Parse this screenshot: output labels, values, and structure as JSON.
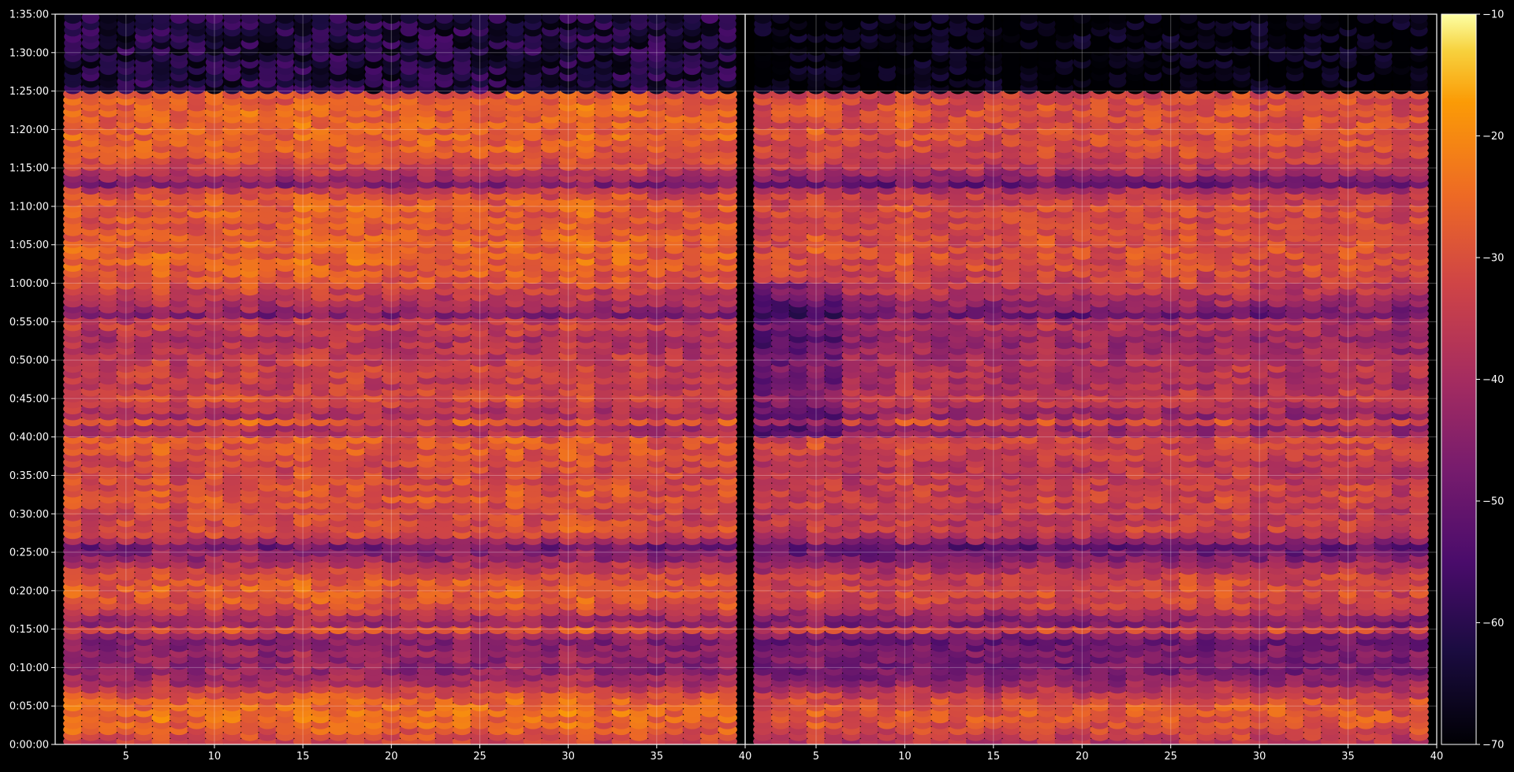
{
  "chart_data": [
    {
      "type": "heatmap",
      "panel": "left",
      "xlim": [
        1,
        40
      ],
      "x_ticks": [
        "5",
        "10",
        "15",
        "20",
        "25",
        "30",
        "35",
        "40"
      ],
      "x_tick_values": [
        5,
        10,
        15,
        20,
        25,
        30,
        35,
        40
      ],
      "ylim": [
        0,
        5700
      ],
      "y_ticks": [
        "0:00:00",
        "0:05:00",
        "0:10:00",
        "0:15:00",
        "0:20:00",
        "0:25:00",
        "0:30:00",
        "0:35:00",
        "0:40:00",
        "0:45:00",
        "0:50:00",
        "0:55:00",
        "1:00:00",
        "1:05:00",
        "1:10:00",
        "1:15:00",
        "1:20:00",
        "1:25:00",
        "1:30:00",
        "1:35:00"
      ],
      "y_tick_values": [
        0,
        300,
        600,
        900,
        1200,
        1500,
        1800,
        2100,
        2400,
        2700,
        3000,
        3300,
        3600,
        3900,
        4200,
        4500,
        4800,
        5100,
        5400,
        5700
      ],
      "data_x_range": [
        1.5,
        39.5
      ],
      "data_y_range_seconds": [
        0,
        5100
      ],
      "grid": true,
      "colormap": "inferno"
    },
    {
      "type": "heatmap",
      "panel": "right",
      "xlim": [
        1,
        40
      ],
      "x_ticks": [
        "5",
        "10",
        "15",
        "20",
        "25",
        "30",
        "35",
        "40"
      ],
      "x_tick_values": [
        5,
        10,
        15,
        20,
        25,
        30,
        35,
        40
      ],
      "ylim": [
        0,
        5700
      ],
      "data_x_range": [
        1.5,
        39.5
      ],
      "data_y_range_seconds": [
        0,
        5100
      ],
      "grid": true,
      "colormap": "inferno",
      "overall_dimmer": true
    }
  ],
  "colorbar": {
    "min": -70,
    "max": -10,
    "ticks": [
      "−10",
      "−20",
      "−30",
      "−40",
      "−50",
      "−60",
      "−70"
    ],
    "tick_values": [
      -10,
      -20,
      -30,
      -40,
      -50,
      -60,
      -70
    ],
    "colormap": "inferno"
  },
  "intensity_profile_dB": {
    "time_seconds": [
      0,
      120,
      240,
      360,
      480,
      600,
      720,
      840,
      900,
      960,
      1080,
      1200,
      1320,
      1440,
      1560,
      1620,
      1680,
      1800,
      1920,
      2040,
      2160,
      2280,
      2400,
      2460,
      2520,
      2580,
      2700,
      2820,
      2940,
      3060,
      3180,
      3300,
      3360,
      3420,
      3600,
      3720,
      3840,
      3960,
      4080,
      4200,
      4320,
      4380,
      4500,
      4620,
      4740,
      4860,
      4980,
      5100
    ],
    "level": [
      -34,
      -27,
      -24,
      -26,
      -38,
      -44,
      -42,
      -47,
      -27,
      -44,
      -30,
      -27,
      -29,
      -40,
      -48,
      -34,
      -30,
      -32,
      -29,
      -30,
      -32,
      -29,
      -28,
      -44,
      -26,
      -40,
      -30,
      -35,
      -33,
      -36,
      -38,
      -32,
      -46,
      -40,
      -30,
      -27,
      -26,
      -27,
      -28,
      -27,
      -31,
      -46,
      -33,
      -28,
      -26,
      -26,
      -26,
      -29
    ]
  }
}
